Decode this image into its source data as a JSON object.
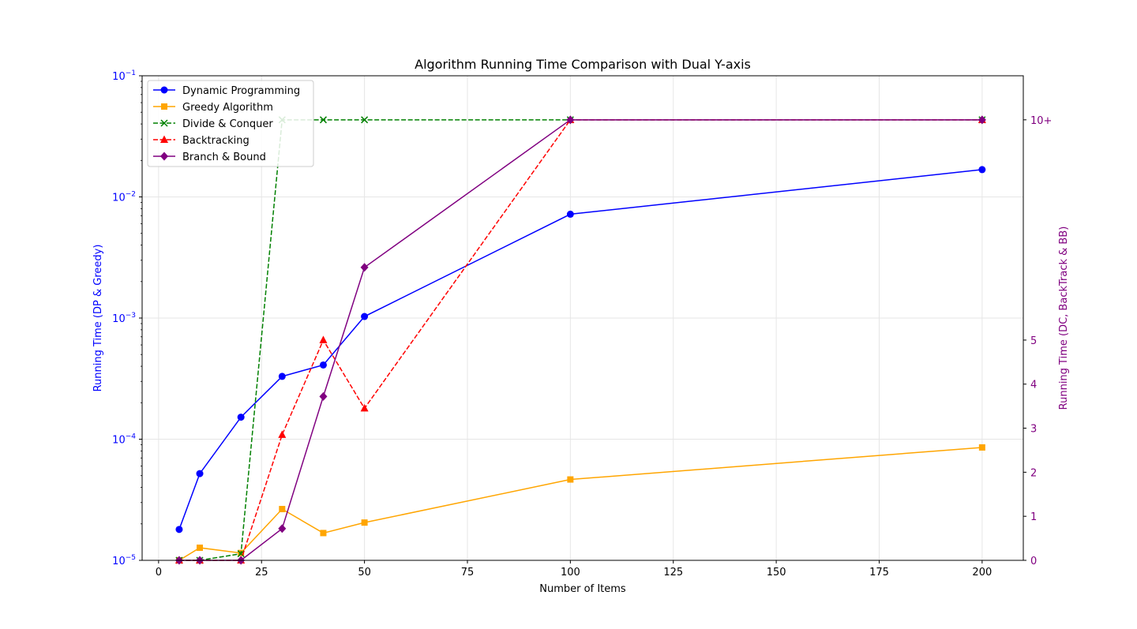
{
  "chart_data": {
    "type": "line",
    "title": "Algorithm Running Time Comparison with Dual Y-axis",
    "xlabel": "Number of Items",
    "ylabel_left": "Running Time (DP & Greedy)",
    "ylabel_right": "Running Time (DC, BackTrack & BB)",
    "xlim": [
      -4,
      210
    ],
    "xticks": [
      0,
      25,
      50,
      75,
      100,
      125,
      150,
      175,
      200
    ],
    "ylim_left": [
      1e-05,
      0.1
    ],
    "yscale_left": "log",
    "yticks_left": [
      {
        "value": 1e-05,
        "base": "10",
        "exp": "−5"
      },
      {
        "value": 0.0001,
        "base": "10",
        "exp": "−4"
      },
      {
        "value": 0.001,
        "base": "10",
        "exp": "−3"
      },
      {
        "value": 0.01,
        "base": "10",
        "exp": "−2"
      },
      {
        "value": 0.1,
        "base": "10",
        "exp": "−1"
      }
    ],
    "ylim_right": [
      0,
      11
    ],
    "yticks_right": [
      {
        "value": 0,
        "label": "0"
      },
      {
        "value": 1,
        "label": "1"
      },
      {
        "value": 2,
        "label": "2"
      },
      {
        "value": 3,
        "label": "3"
      },
      {
        "value": 4,
        "label": "4"
      },
      {
        "value": 5,
        "label": "5"
      },
      {
        "value": 10,
        "label": "10+"
      }
    ],
    "grid": true,
    "legend_position": "upper-left",
    "series": [
      {
        "name": "Dynamic Programming",
        "axis": "left",
        "color": "#0000ff",
        "marker": "circle",
        "dash": "solid",
        "x": [
          5,
          10,
          20,
          30,
          40,
          50,
          100,
          200
        ],
        "y": [
          1.8e-05,
          5.2e-05,
          0.000152,
          0.00033,
          0.00041,
          0.00103,
          0.0072,
          0.0168
        ]
      },
      {
        "name": "Greedy Algorithm",
        "axis": "left",
        "color": "#ffa500",
        "marker": "square",
        "dash": "solid",
        "x": [
          5,
          10,
          20,
          30,
          40,
          50,
          100,
          200
        ],
        "y": [
          1e-05,
          1.27e-05,
          1.15e-05,
          2.65e-05,
          1.68e-05,
          2.05e-05,
          4.65e-05,
          8.55e-05
        ]
      },
      {
        "name": "Divide & Conquer",
        "axis": "right",
        "color": "#008000",
        "marker": "x",
        "dash": "dashed",
        "x": [
          5,
          10,
          20,
          30,
          40,
          50,
          100,
          200
        ],
        "y": [
          0,
          0,
          0.15,
          10,
          10,
          10,
          10,
          10
        ]
      },
      {
        "name": "Backtracking",
        "axis": "right",
        "color": "#ff0000",
        "marker": "triangle",
        "dash": "dashed",
        "x": [
          5,
          10,
          20,
          30,
          40,
          50,
          100,
          200
        ],
        "y": [
          0,
          0,
          0,
          2.85,
          5,
          3.45,
          10,
          10
        ]
      },
      {
        "name": "Branch & Bound",
        "axis": "right",
        "color": "#800080",
        "marker": "diamond",
        "dash": "solid",
        "x": [
          5,
          10,
          20,
          30,
          40,
          50,
          100,
          200
        ],
        "y": [
          0,
          0,
          0,
          0.72,
          3.72,
          6.65,
          10,
          10
        ]
      }
    ],
    "colors": {
      "left_axis": "#0000ff",
      "right_axis": "#800080",
      "grid": "#e6e6e6"
    }
  }
}
